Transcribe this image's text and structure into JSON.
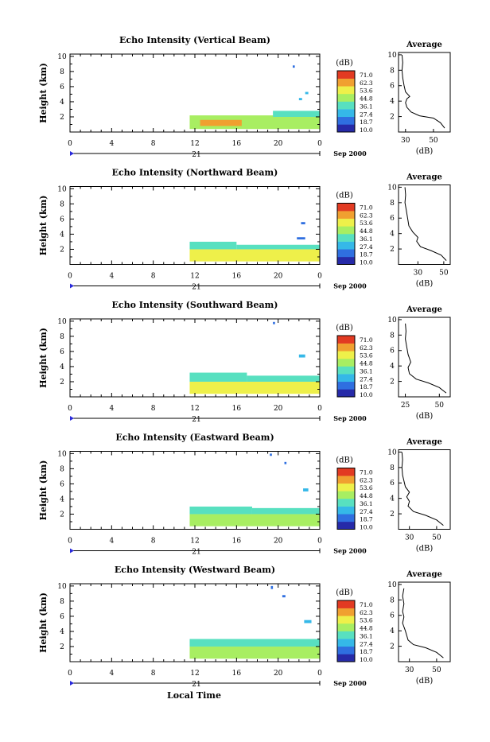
{
  "figure": {
    "x_axis_title": "Local Time",
    "date_label": "Sep 2000",
    "day_label": "21",
    "colorbar_unit": "(dB)",
    "colorbar_ticks": [
      "71.0",
      "62.3",
      "53.6",
      "44.8",
      "36.1",
      "27.4",
      "18.7",
      "10.0"
    ],
    "colorbar_colors": [
      "#262aa8",
      "#2f6fe0",
      "#35b8e8",
      "#58e0c0",
      "#a8ee62",
      "#eef04a",
      "#f0a030",
      "#e23a22"
    ],
    "average_title": "Average",
    "average_xlabel": "(dB)"
  },
  "chart_data": [
    {
      "type": "heatmap",
      "title": "Echo Intensity (Vertical Beam)",
      "ylabel": "Height (km)",
      "xlabel": "Local Time",
      "x_ticks": [
        "0",
        "4",
        "8",
        "12",
        "16",
        "20",
        "0"
      ],
      "y_ticks": [
        "2",
        "4",
        "6",
        "8",
        "10"
      ],
      "xlim": [
        0,
        24
      ],
      "ylim": [
        0,
        10.3
      ],
      "colorbar_range": [
        10.0,
        71.0
      ],
      "echo_blocks": [
        {
          "t0": 11.5,
          "t1": 24,
          "h0": 0.4,
          "h1": 2.2,
          "level": 48
        },
        {
          "t0": 12.5,
          "t1": 16.5,
          "h0": 0.8,
          "h1": 1.6,
          "level": 58
        },
        {
          "t0": 19.5,
          "t1": 24,
          "h0": 2.0,
          "h1": 2.8,
          "level": 35
        },
        {
          "t0": 21.4,
          "t1": 21.6,
          "h0": 8.5,
          "h1": 8.8,
          "level": 22
        },
        {
          "t0": 22.6,
          "t1": 22.9,
          "h0": 5.0,
          "h1": 5.3,
          "level": 28
        },
        {
          "t0": 22.0,
          "t1": 22.3,
          "h0": 4.2,
          "h1": 4.5,
          "level": 30
        }
      ],
      "average": {
        "xlim": [
          25,
          62
        ],
        "x_ticks": [
          "30",
          "50"
        ],
        "y_ticks": [
          "2",
          "4",
          "6",
          "8",
          "10"
        ],
        "profile": [
          [
            58,
            0.5
          ],
          [
            55,
            1.2
          ],
          [
            50,
            1.8
          ],
          [
            40,
            2.1
          ],
          [
            34,
            2.6
          ],
          [
            31,
            3.2
          ],
          [
            30,
            3.8
          ],
          [
            31,
            4.3
          ],
          [
            33,
            4.6
          ],
          [
            30,
            5.2
          ],
          [
            29,
            6.0
          ],
          [
            28,
            7.0
          ],
          [
            27.5,
            8.0
          ],
          [
            28,
            9.0
          ],
          [
            27.5,
            10.0
          ]
        ]
      }
    },
    {
      "type": "heatmap",
      "title": "Echo Intensity (Northward Beam)",
      "ylabel": "Height (km)",
      "xlabel": "Local Time",
      "x_ticks": [
        "0",
        "4",
        "8",
        "12",
        "16",
        "20",
        "0"
      ],
      "y_ticks": [
        "2",
        "4",
        "6",
        "8",
        "10"
      ],
      "xlim": [
        0,
        24
      ],
      "ylim": [
        0,
        10.3
      ],
      "colorbar_range": [
        10.0,
        71.0
      ],
      "echo_blocks": [
        {
          "t0": 11.5,
          "t1": 24,
          "h0": 0.4,
          "h1": 2.0,
          "level": 50
        },
        {
          "t0": 11.5,
          "t1": 16.0,
          "h0": 2.0,
          "h1": 3.0,
          "level": 35
        },
        {
          "t0": 16.0,
          "t1": 24,
          "h0": 2.0,
          "h1": 2.6,
          "level": 38
        },
        {
          "t0": 21.8,
          "t1": 22.6,
          "h0": 3.3,
          "h1": 3.6,
          "level": 24
        },
        {
          "t0": 22.2,
          "t1": 22.6,
          "h0": 5.3,
          "h1": 5.6,
          "level": 25
        }
      ],
      "average": {
        "xlim": [
          15,
          55
        ],
        "x_ticks": [
          "30",
          "50"
        ],
        "y_ticks": [
          "2",
          "4",
          "6",
          "8",
          "10"
        ],
        "profile": [
          [
            52,
            0.5
          ],
          [
            48,
            1.2
          ],
          [
            40,
            1.8
          ],
          [
            32,
            2.3
          ],
          [
            29,
            3.0
          ],
          [
            30,
            3.5
          ],
          [
            26,
            4.2
          ],
          [
            23,
            5.0
          ],
          [
            22,
            6.0
          ],
          [
            21,
            7.0
          ],
          [
            20,
            8.0
          ],
          [
            20.5,
            9.0
          ],
          [
            20,
            10.0
          ]
        ]
      }
    },
    {
      "type": "heatmap",
      "title": "Echo Intensity (Southward Beam)",
      "ylabel": "Height (km)",
      "xlabel": "Local Time",
      "x_ticks": [
        "0",
        "4",
        "8",
        "12",
        "16",
        "20",
        "0"
      ],
      "y_ticks": [
        "2",
        "4",
        "6",
        "8",
        "10"
      ],
      "xlim": [
        0,
        24
      ],
      "ylim": [
        0,
        10.3
      ],
      "colorbar_range": [
        10.0,
        71.0
      ],
      "echo_blocks": [
        {
          "t0": 11.5,
          "t1": 24,
          "h0": 0.4,
          "h1": 2.0,
          "level": 50
        },
        {
          "t0": 11.5,
          "t1": 17.0,
          "h0": 2.0,
          "h1": 3.2,
          "level": 36
        },
        {
          "t0": 17.0,
          "t1": 24,
          "h0": 2.0,
          "h1": 2.8,
          "level": 38
        },
        {
          "t0": 19.5,
          "t1": 19.7,
          "h0": 9.6,
          "h1": 9.9,
          "level": 22
        },
        {
          "t0": 22.0,
          "t1": 22.6,
          "h0": 5.2,
          "h1": 5.6,
          "level": 26
        }
      ],
      "average": {
        "xlim": [
          20,
          58
        ],
        "x_ticks": [
          "25",
          "50"
        ],
        "y_ticks": [
          "2",
          "4",
          "6",
          "8",
          "10"
        ],
        "profile": [
          [
            55,
            0.5
          ],
          [
            50,
            1.2
          ],
          [
            42,
            1.8
          ],
          [
            33,
            2.3
          ],
          [
            28,
            3.0
          ],
          [
            27,
            3.8
          ],
          [
            29,
            4.5
          ],
          [
            27,
            5.5
          ],
          [
            26,
            6.5
          ],
          [
            25,
            7.5
          ],
          [
            25.5,
            8.5
          ],
          [
            25,
            9.5
          ]
        ]
      }
    },
    {
      "type": "heatmap",
      "title": "Echo Intensity (Eastward Beam)",
      "ylabel": "Height (km)",
      "xlabel": "Local Time",
      "x_ticks": [
        "0",
        "4",
        "8",
        "12",
        "16",
        "20",
        "0"
      ],
      "y_ticks": [
        "2",
        "4",
        "6",
        "8",
        "10"
      ],
      "xlim": [
        0,
        24
      ],
      "ylim": [
        0,
        10.3
      ],
      "colorbar_range": [
        10.0,
        71.0
      ],
      "echo_blocks": [
        {
          "t0": 11.5,
          "t1": 24,
          "h0": 0.4,
          "h1": 2.0,
          "level": 48
        },
        {
          "t0": 11.5,
          "t1": 17.5,
          "h0": 2.0,
          "h1": 3.0,
          "level": 36
        },
        {
          "t0": 17.5,
          "t1": 24,
          "h0": 2.0,
          "h1": 2.8,
          "level": 38
        },
        {
          "t0": 19.2,
          "t1": 19.4,
          "h0": 9.7,
          "h1": 10.0,
          "level": 22
        },
        {
          "t0": 20.6,
          "t1": 20.8,
          "h0": 8.6,
          "h1": 8.9,
          "level": 22
        },
        {
          "t0": 22.4,
          "t1": 22.9,
          "h0": 5.0,
          "h1": 5.4,
          "level": 26
        }
      ],
      "average": {
        "xlim": [
          22,
          60
        ],
        "x_ticks": [
          "30",
          "50"
        ],
        "y_ticks": [
          "2",
          "4",
          "6",
          "8",
          "10"
        ],
        "profile": [
          [
            55,
            0.5
          ],
          [
            50,
            1.2
          ],
          [
            42,
            1.8
          ],
          [
            33,
            2.3
          ],
          [
            29,
            3.0
          ],
          [
            30,
            3.6
          ],
          [
            28,
            4.2
          ],
          [
            30,
            4.8
          ],
          [
            27,
            5.5
          ],
          [
            25,
            7.0
          ],
          [
            24.5,
            8.0
          ],
          [
            25,
            9.0
          ],
          [
            24.5,
            10.0
          ]
        ]
      }
    },
    {
      "type": "heatmap",
      "title": "Echo Intensity (Westward Beam)",
      "ylabel": "Height (km)",
      "xlabel": "Local Time",
      "x_ticks": [
        "0",
        "4",
        "8",
        "12",
        "16",
        "20",
        "0"
      ],
      "y_ticks": [
        "2",
        "4",
        "6",
        "8",
        "10"
      ],
      "xlim": [
        0,
        24
      ],
      "ylim": [
        0,
        10.3
      ],
      "colorbar_range": [
        10.0,
        71.0
      ],
      "echo_blocks": [
        {
          "t0": 11.5,
          "t1": 24,
          "h0": 0.4,
          "h1": 2.0,
          "level": 48
        },
        {
          "t0": 11.5,
          "t1": 18.0,
          "h0": 2.0,
          "h1": 3.0,
          "level": 36
        },
        {
          "t0": 18.0,
          "t1": 24,
          "h0": 2.0,
          "h1": 3.0,
          "level": 38
        },
        {
          "t0": 19.3,
          "t1": 19.5,
          "h0": 9.6,
          "h1": 10.0,
          "level": 22
        },
        {
          "t0": 20.4,
          "t1": 20.7,
          "h0": 8.5,
          "h1": 8.8,
          "level": 23
        },
        {
          "t0": 22.5,
          "t1": 23.2,
          "h0": 5.1,
          "h1": 5.5,
          "level": 26
        }
      ],
      "average": {
        "xlim": [
          22,
          60
        ],
        "x_ticks": [
          "30",
          "50"
        ],
        "y_ticks": [
          "2",
          "4",
          "6",
          "8",
          "10"
        ],
        "profile": [
          [
            55,
            0.5
          ],
          [
            50,
            1.2
          ],
          [
            42,
            1.8
          ],
          [
            33,
            2.2
          ],
          [
            29,
            2.8
          ],
          [
            28,
            3.4
          ],
          [
            27,
            4.0
          ],
          [
            25,
            5.0
          ],
          [
            26,
            5.8
          ],
          [
            25,
            6.5
          ],
          [
            26,
            7.5
          ],
          [
            25,
            8.5
          ],
          [
            26,
            9.5
          ]
        ]
      }
    }
  ]
}
